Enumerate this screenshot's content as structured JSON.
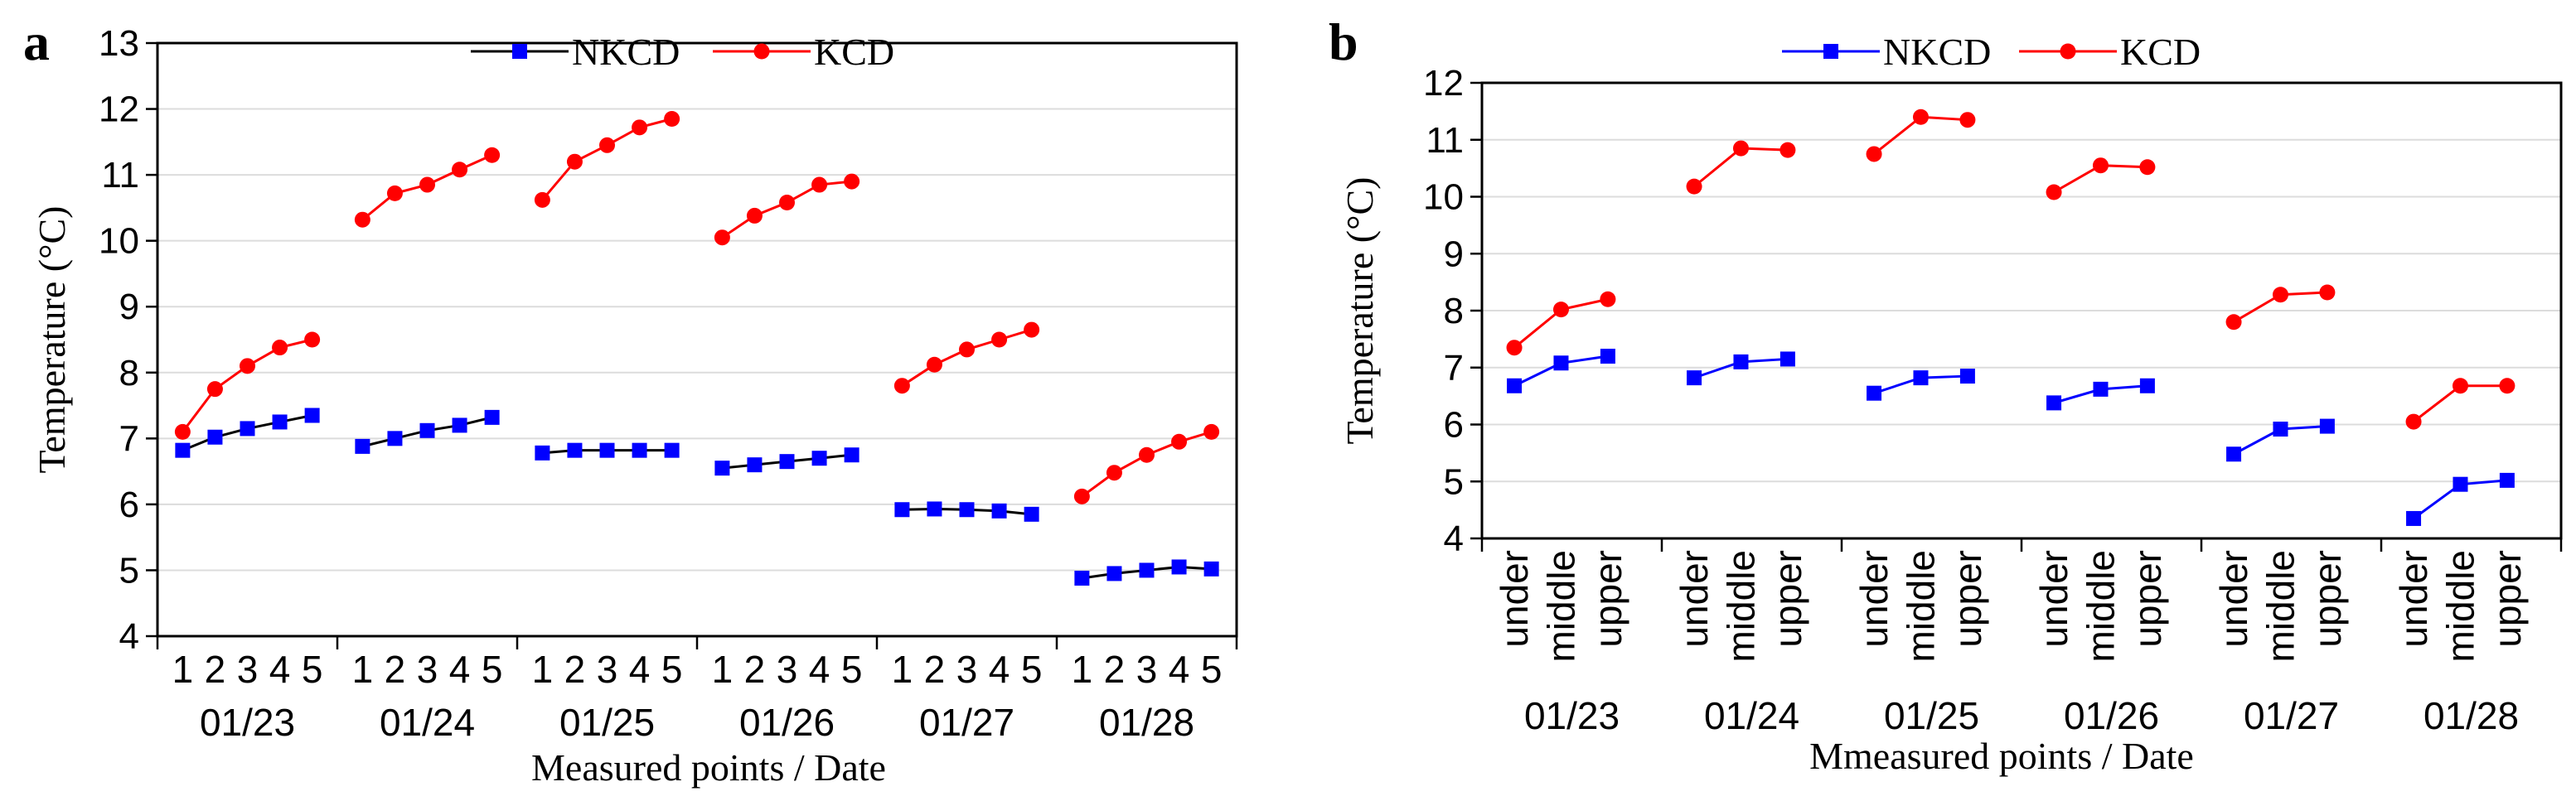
{
  "chart_data": [
    {
      "panel_label": "a",
      "type": "line",
      "xlabel": "Measured points / Date",
      "ylabel": "Temperature (°C)",
      "ylim": [
        4,
        13
      ],
      "yticks": [
        4,
        5,
        6,
        7,
        8,
        9,
        10,
        11,
        12,
        13
      ],
      "grid": "horizontal",
      "legend_position": "top",
      "groups": [
        "01/23",
        "01/24",
        "01/25",
        "01/26",
        "01/27",
        "01/28"
      ],
      "point_labels": [
        "1",
        "2",
        "3",
        "4",
        "5"
      ],
      "series": [
        {
          "name": "NKCD",
          "color": "#0000ff",
          "line_color": "#000000",
          "marker": "square",
          "values": [
            [
              6.82,
              7.02,
              7.15,
              7.25,
              7.35
            ],
            [
              6.88,
              7.0,
              7.12,
              7.2,
              7.32
            ],
            [
              6.78,
              6.82,
              6.82,
              6.82,
              6.82
            ],
            [
              6.55,
              6.6,
              6.65,
              6.7,
              6.75
            ],
            [
              5.92,
              5.93,
              5.92,
              5.9,
              5.85
            ],
            [
              4.88,
              4.95,
              5.0,
              5.05,
              5.02
            ]
          ]
        },
        {
          "name": "KCD",
          "color": "#ff0000",
          "line_color": "#ff0000",
          "marker": "circle",
          "values": [
            [
              7.1,
              7.75,
              8.1,
              8.38,
              8.5
            ],
            [
              10.32,
              10.72,
              10.85,
              11.08,
              11.3
            ],
            [
              10.62,
              11.2,
              11.45,
              11.72,
              11.85
            ],
            [
              10.05,
              10.38,
              10.58,
              10.85,
              10.9
            ],
            [
              7.8,
              8.12,
              8.35,
              8.5,
              8.65
            ],
            [
              6.12,
              6.48,
              6.75,
              6.95,
              7.1
            ]
          ]
        }
      ]
    },
    {
      "panel_label": "b",
      "type": "line",
      "xlabel": "Mmeasured points / Date",
      "ylabel": "Temperature (°C)",
      "ylim": [
        4,
        12
      ],
      "yticks": [
        4,
        5,
        6,
        7,
        8,
        9,
        10,
        11,
        12
      ],
      "grid": "horizontal",
      "legend_position": "top",
      "groups": [
        "01/23",
        "01/24",
        "01/25",
        "01/26",
        "01/27",
        "01/28"
      ],
      "point_labels": [
        "under",
        "middle",
        "upper"
      ],
      "series": [
        {
          "name": "NKCD",
          "color": "#0000ff",
          "line_color": "#0000ff",
          "marker": "square",
          "values": [
            [
              6.68,
              7.08,
              7.2
            ],
            [
              6.82,
              7.1,
              7.15
            ],
            [
              6.55,
              6.82,
              6.85
            ],
            [
              6.38,
              6.62,
              6.68
            ],
            [
              5.48,
              5.92,
              5.97
            ],
            [
              4.35,
              4.95,
              5.02
            ]
          ]
        },
        {
          "name": "KCD",
          "color": "#ff0000",
          "line_color": "#ff0000",
          "marker": "circle",
          "values": [
            [
              7.35,
              8.02,
              8.2
            ],
            [
              10.18,
              10.85,
              10.82
            ],
            [
              10.75,
              11.4,
              11.35
            ],
            [
              10.08,
              10.55,
              10.52
            ],
            [
              7.8,
              8.28,
              8.32
            ],
            [
              6.05,
              6.68,
              6.68
            ]
          ]
        }
      ]
    }
  ]
}
